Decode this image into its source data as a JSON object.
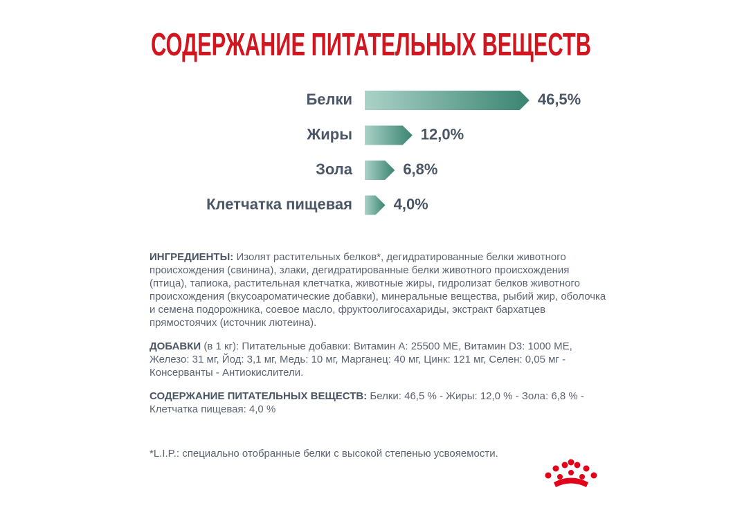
{
  "chart_data": {
    "type": "bar",
    "orientation": "horizontal",
    "title": "СОДЕРЖАНИЕ ПИТАТЕЛЬНЫХ ВЕЩЕСТВ",
    "categories": [
      "Белки",
      "Жиры",
      "Зола",
      "Клетчатка пищевая"
    ],
    "values": [
      46.5,
      12.0,
      6.8,
      4.0
    ],
    "value_labels": [
      "46,5%",
      "12,0%",
      "6,8%",
      "4,0%"
    ],
    "colors": [
      "#aad2c7",
      "#3a8471"
    ]
  },
  "ingredients": {
    "label": "ИНГРЕДИЕНТЫ:",
    "text": "Изолят растительных белков*, дегидратированные белки животного происхождения (свинина), злаки, дегидратированные белки животного происхождения (птица), тапиока, растительная клетчатка, животные жиры, гидролизат белков животного происхождения (вкусоароматические добавки), минеральные вещества, рыбий жир, оболочка и семена подорожника, соевое масло, фруктоолигосахариды, экстракт бархатцев прямостоячих (источник лютеина)."
  },
  "additives": {
    "label": "ДОБАВКИ",
    "note": "(в 1 кг):",
    "text": "Питательные добавки: Витамин А: 25500 МЕ, Витамин D3: 1000 МЕ, Железо: 31 мг, Йод: 3,1 мг, Медь: 10 мг, Марганец: 40 мг, Цинк: 121 мг, Селен: 0,05 мг - Консерванты - Антиокислители."
  },
  "composition": {
    "label": "СОДЕРЖАНИЕ ПИТАТЕЛЬНЫХ ВЕЩЕСТВ:",
    "text": "Белки: 46,5 % - Жиры: 12,0 % - Зола: 6,8 % - Клетчатка пищевая: 4,0 %"
  },
  "footnote": "*L.I.P.: специально отобранные белки с высокой степенью усвояемости."
}
